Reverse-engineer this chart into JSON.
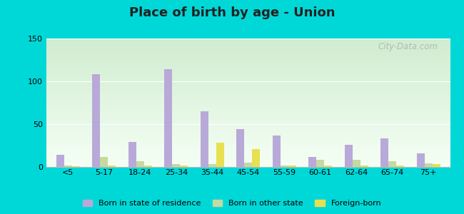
{
  "title": "Place of birth by age - Union",
  "categories": [
    "<5",
    "5-17",
    "18-24",
    "25-34",
    "35-44",
    "45-54",
    "55-59",
    "60-61",
    "62-64",
    "65-74",
    "75+"
  ],
  "born_in_state": [
    14,
    108,
    29,
    114,
    65,
    44,
    37,
    12,
    26,
    33,
    16
  ],
  "born_in_other": [
    2,
    12,
    7,
    3,
    3,
    5,
    2,
    8,
    8,
    7,
    4
  ],
  "foreign_born": [
    1,
    2,
    2,
    2,
    28,
    21,
    2,
    2,
    2,
    2,
    3
  ],
  "color_state": "#b8a9d9",
  "color_other": "#c5d9a0",
  "color_foreign": "#e8e050",
  "ylim": [
    0,
    150
  ],
  "yticks": [
    0,
    50,
    100,
    150
  ],
  "outer_bg": "#00d8d8",
  "bar_width": 0.22,
  "watermark": "City-Data.com",
  "legend_labels": [
    "Born in state of residence",
    "Born in other state",
    "Foreign-born"
  ]
}
